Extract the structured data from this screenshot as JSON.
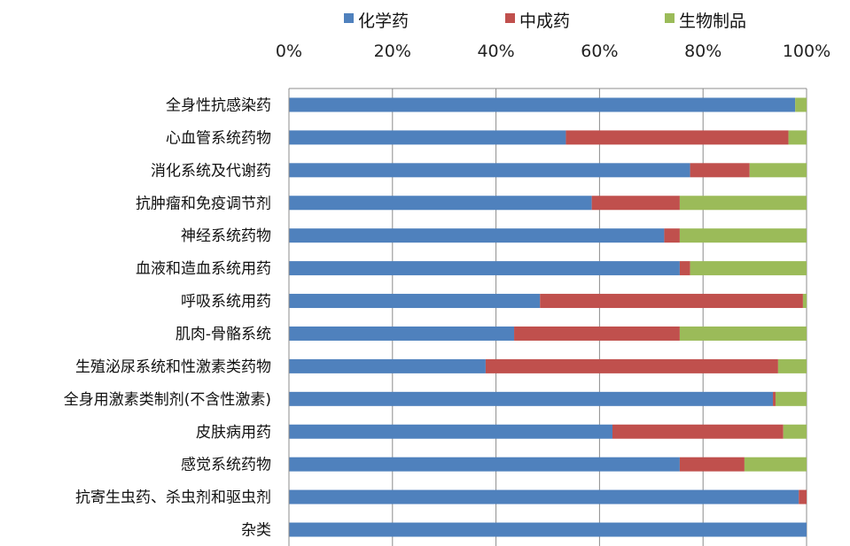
{
  "chart_data": {
    "type": "bar",
    "orientation": "horizontal",
    "stacked": "percent",
    "title": "",
    "xlabel": "",
    "ylabel": "",
    "xlim": [
      0,
      100
    ],
    "x_ticks": [
      "0%",
      "20%",
      "40%",
      "60%",
      "80%",
      "100%"
    ],
    "x_tick_values": [
      0,
      20,
      40,
      60,
      80,
      100
    ],
    "grid": true,
    "legend_position": "top",
    "categories": [
      "全身性抗感染药",
      "心血管系统药物",
      "消化系统及代谢药",
      "抗肿瘤和免疫调节剂",
      "神经系统药物",
      "血液和造血系统用药",
      "呼吸系统用药",
      "肌肉-骨骼系统",
      "生殖泌尿系统和性激素类药物",
      "全身用激素类制剂(不含性激素)",
      "皮肤病用药",
      "感觉系统药物",
      "抗寄生虫药、杀虫剂和驱虫剂",
      "杂类"
    ],
    "series": [
      {
        "name": "化学药",
        "color": "#4f81bd",
        "values": [
          97.8,
          53.5,
          77.5,
          58.5,
          72.5,
          75.5,
          48.5,
          43.5,
          38.0,
          93.5,
          62.5,
          75.5,
          98.5,
          100.0
        ]
      },
      {
        "name": "中成药",
        "color": "#c0504d",
        "values": [
          0.0,
          43.0,
          11.5,
          17.0,
          3.0,
          2.0,
          50.8,
          32.0,
          56.5,
          0.5,
          33.0,
          12.5,
          1.5,
          0.0
        ]
      },
      {
        "name": "生物制品",
        "color": "#9bbb59",
        "values": [
          2.2,
          3.5,
          11.0,
          24.5,
          24.5,
          22.5,
          0.7,
          24.5,
          5.5,
          6.0,
          4.5,
          12.0,
          0.0,
          0.0
        ]
      }
    ]
  }
}
